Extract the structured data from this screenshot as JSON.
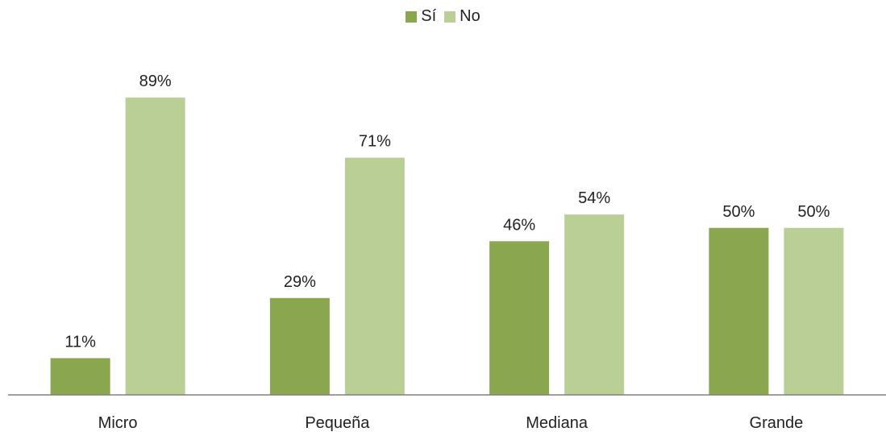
{
  "chart_data": {
    "type": "bar",
    "categories": [
      "Micro",
      "Pequeña",
      "Mediana",
      "Grande"
    ],
    "series": [
      {
        "name": "Sí",
        "values": [
          11,
          29,
          46,
          50
        ],
        "labels": [
          "11%",
          "29%",
          "46%",
          "50%"
        ],
        "color": "#8aa74f"
      },
      {
        "name": "No",
        "values": [
          89,
          71,
          54,
          50
        ],
        "labels": [
          "89%",
          "71%",
          "54%",
          "50%"
        ],
        "color": "#b9cf96"
      }
    ],
    "title": "",
    "xlabel": "",
    "ylabel": "",
    "ylim": [
      0,
      100
    ],
    "grid": false,
    "legend_position": "top-center",
    "axis_color": "#808080"
  }
}
